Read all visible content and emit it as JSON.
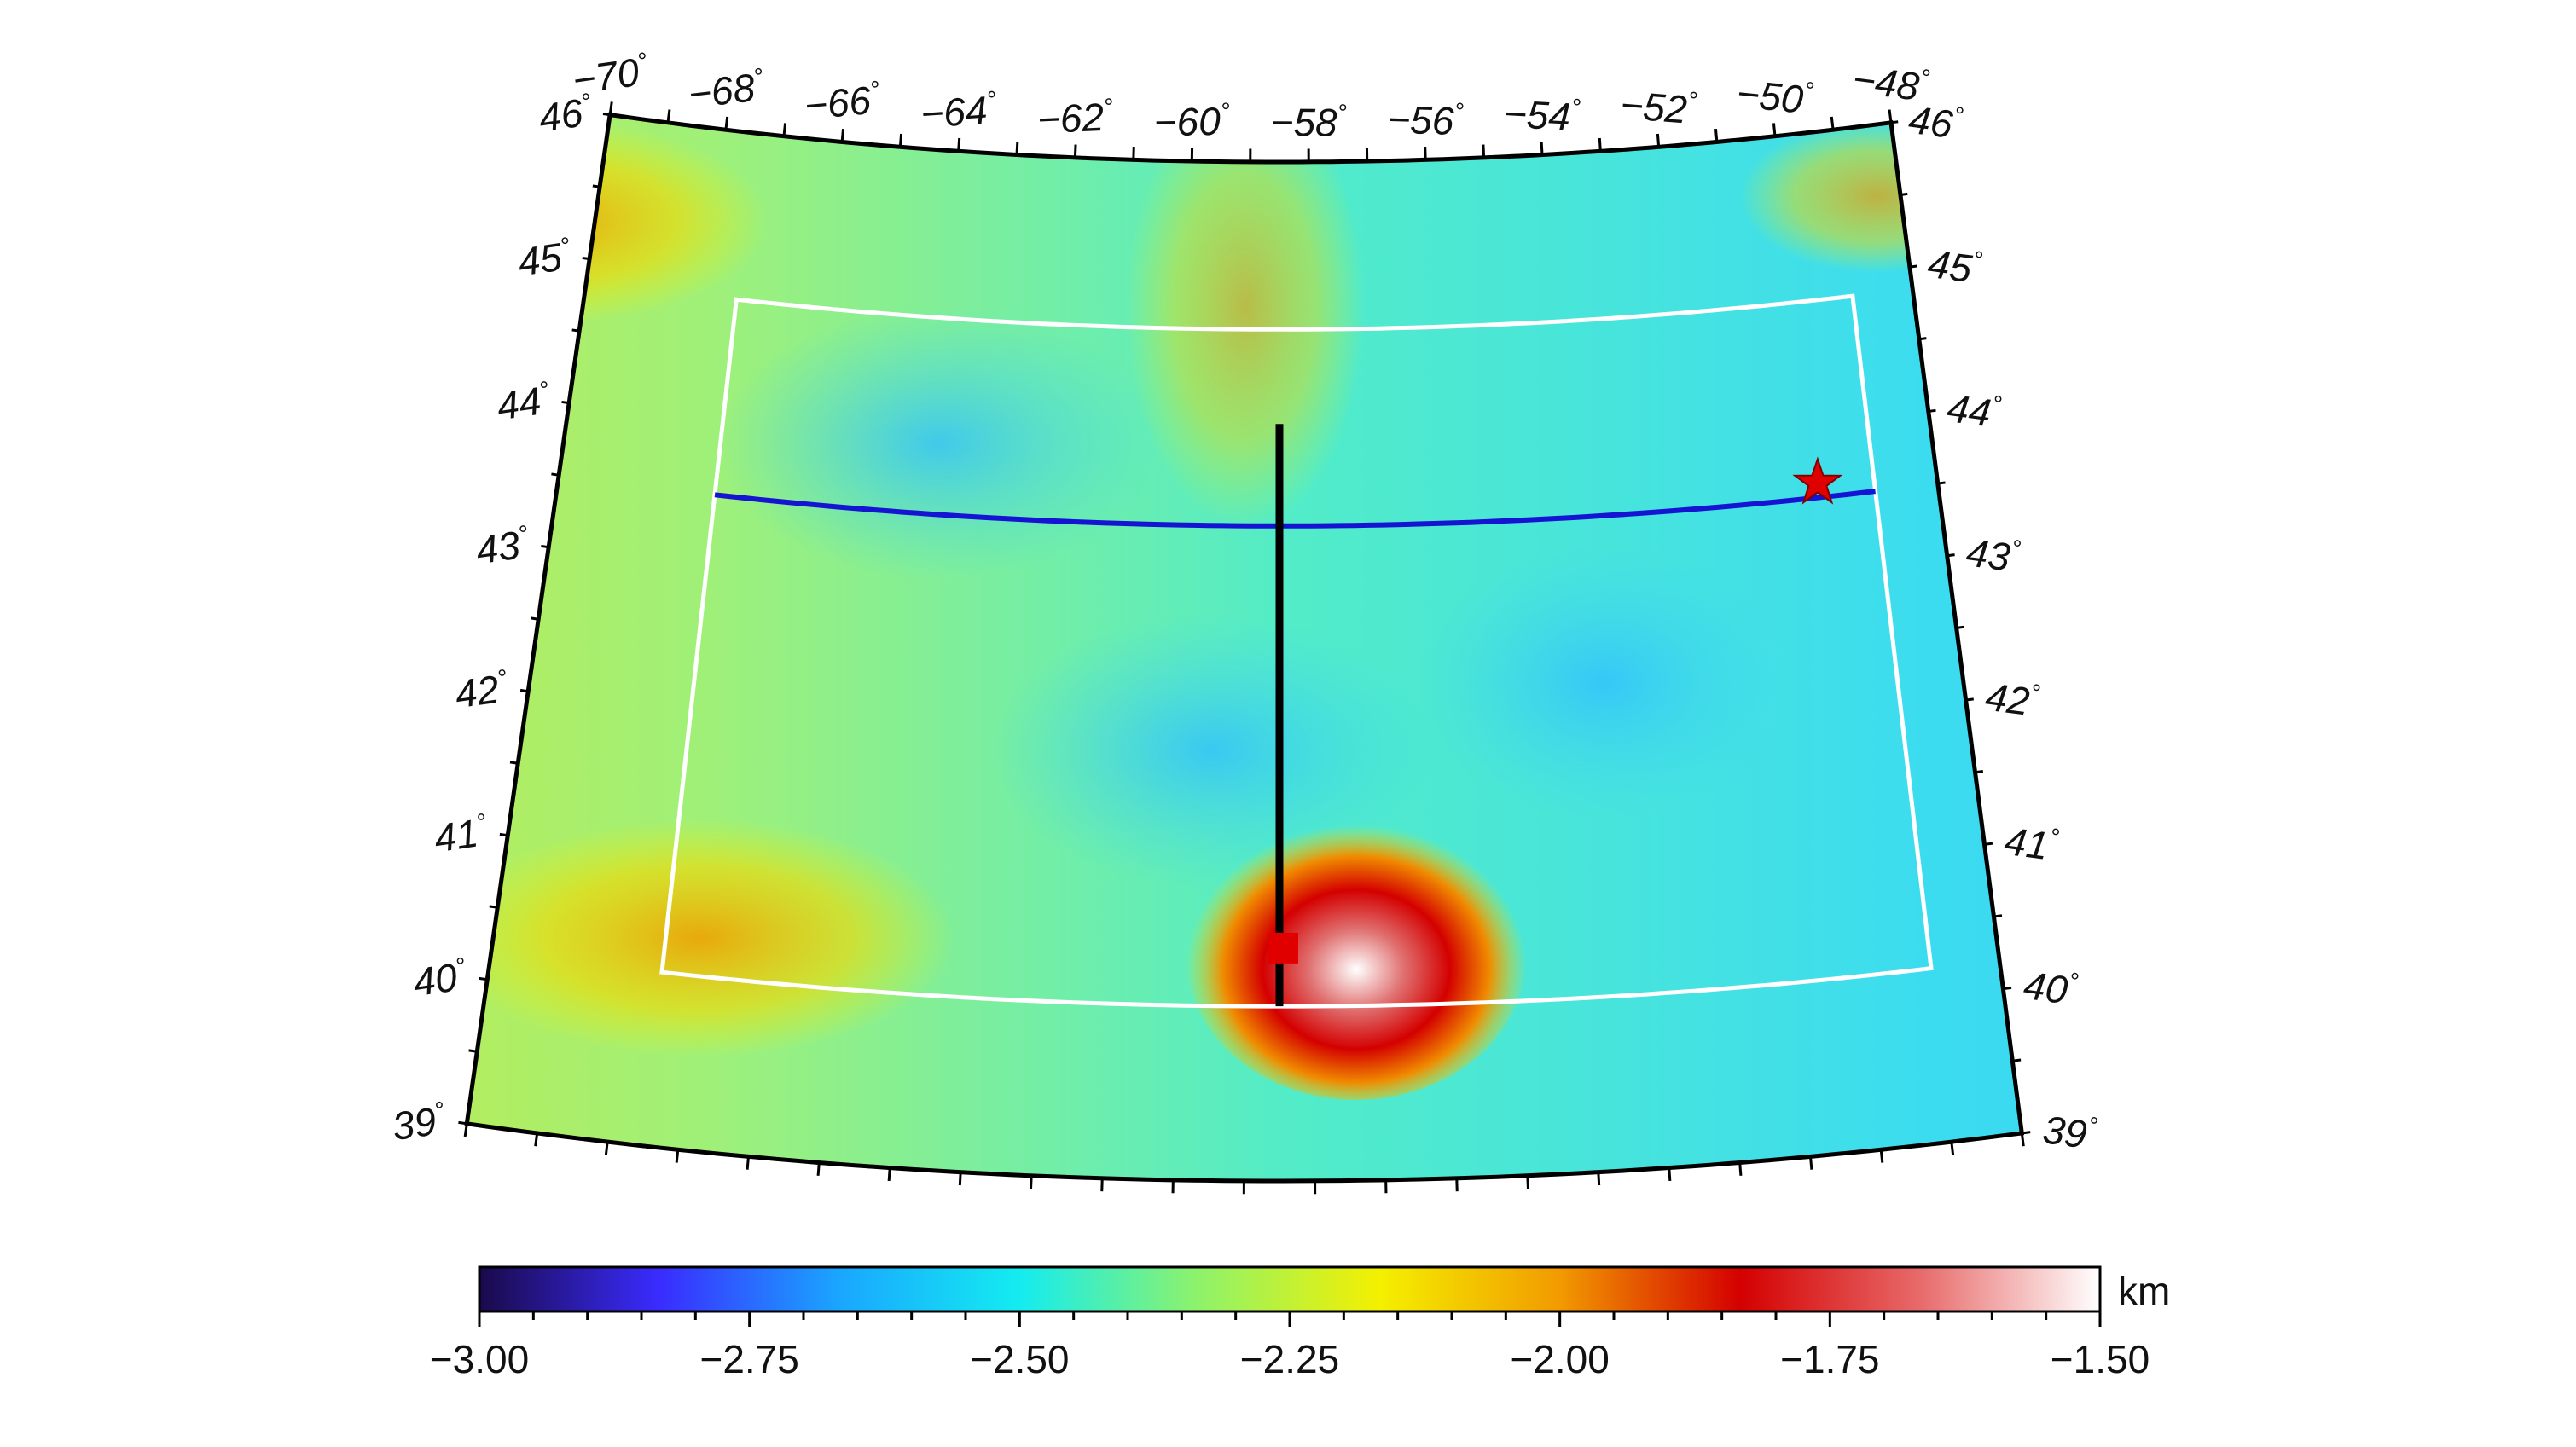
{
  "map": {
    "projection": "conic",
    "lon_range": [
      -70,
      -48
    ],
    "lat_range": [
      39,
      46
    ],
    "top_lon_labels": [
      "−70",
      "−68",
      "−66",
      "−64",
      "−62",
      "−60",
      "−58",
      "−56",
      "−54",
      "−52",
      "−50",
      "−48"
    ],
    "lat_labels": [
      "39",
      "40",
      "41",
      "42",
      "43",
      "44",
      "45",
      "46"
    ],
    "degree_symbol": "°",
    "study_region": {
      "lon": [
        -67.5,
        -49
      ],
      "lat": [
        40.2,
        44.85
      ],
      "color": "#ffffff"
    },
    "profile_line_horizontal": {
      "lat": 43.5,
      "lon": [
        -67.5,
        -49
      ],
      "color": "#1414d2"
    },
    "profile_line_vertical": {
      "lon": -58.5,
      "lat": [
        40.2,
        44.2
      ],
      "color": "#000000"
    },
    "red_square_marker": {
      "lon": -58.45,
      "lat": 40.6,
      "color": "#e00000",
      "icon": "square"
    },
    "red_star_marker": {
      "lon": -49.9,
      "lat": 43.6,
      "color": "#e00000",
      "icon": "star"
    }
  },
  "colorbar": {
    "min": -3.0,
    "max": -1.5,
    "unit": "km",
    "tick_labels": [
      "−3.00",
      "−2.75",
      "−2.50",
      "−2.25",
      "−2.00",
      "−1.75",
      "−1.50"
    ],
    "colors": [
      "#1a0a4a",
      "#3a2cff",
      "#1aa6ff",
      "#14ecf0",
      "#8ff26a",
      "#f4f000",
      "#f29a00",
      "#d40000",
      "#e86a6a",
      "#ffffff"
    ]
  }
}
